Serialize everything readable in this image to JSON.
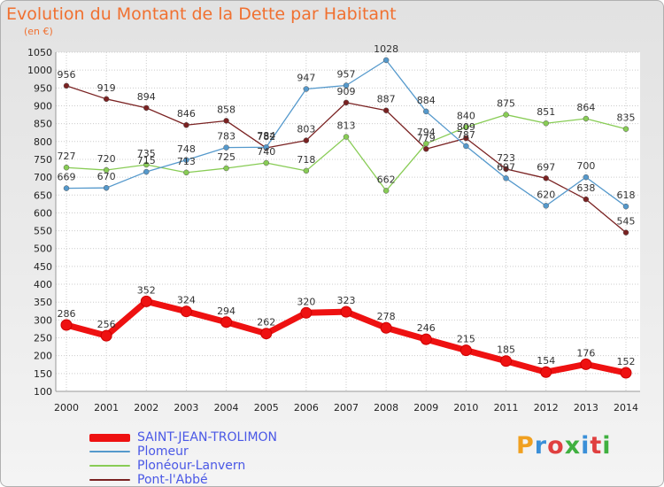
{
  "header": {
    "title": "Evolution du Montant de la Dette par Habitant",
    "subtitle": "(en €)"
  },
  "logo": {
    "text": "Proxiti",
    "colors": [
      "#f0a020",
      "#3a8fd8",
      "#e04040",
      "#40b040",
      "#3a8fd8",
      "#e04040",
      "#40b040"
    ]
  },
  "chart_data": {
    "type": "line",
    "title": "Evolution du Montant de la Dette par Habitant",
    "subtitle": "(en €)",
    "xlabel": "",
    "ylabel": "",
    "x": [
      "2000",
      "2001",
      "2002",
      "2003",
      "2004",
      "2005",
      "2006",
      "2007",
      "2008",
      "2009",
      "2010",
      "2011",
      "2012",
      "2013",
      "2014"
    ],
    "ylim": [
      100,
      1050
    ],
    "yticks": [
      100,
      150,
      200,
      250,
      300,
      350,
      400,
      450,
      500,
      550,
      600,
      650,
      700,
      750,
      800,
      850,
      900,
      950,
      1000,
      1050
    ],
    "grid": true,
    "legend_position": "bottom-left",
    "series": [
      {
        "name": "SAINT-JEAN-TROLIMON",
        "color": "#ee1111",
        "values": [
          286,
          256,
          352,
          324,
          294,
          262,
          320,
          323,
          278,
          246,
          215,
          185,
          154,
          176,
          152
        ]
      },
      {
        "name": "Plomeur",
        "color": "#5599cc",
        "values": [
          669,
          670,
          715,
          748,
          783,
          784,
          947,
          957,
          1028,
          884,
          787,
          697,
          620,
          700,
          618
        ]
      },
      {
        "name": "Plonéour-Lanvern",
        "color": "#88cc55",
        "values": [
          727,
          720,
          735,
          713,
          725,
          740,
          718,
          813,
          662,
          794,
          840,
          875,
          851,
          864,
          835
        ]
      },
      {
        "name": "Pont-l'Abbé",
        "color": "#7a2222",
        "values": [
          956,
          919,
          894,
          846,
          858,
          782,
          803,
          909,
          887,
          779,
          809,
          723,
          697,
          638,
          545
        ]
      }
    ]
  }
}
